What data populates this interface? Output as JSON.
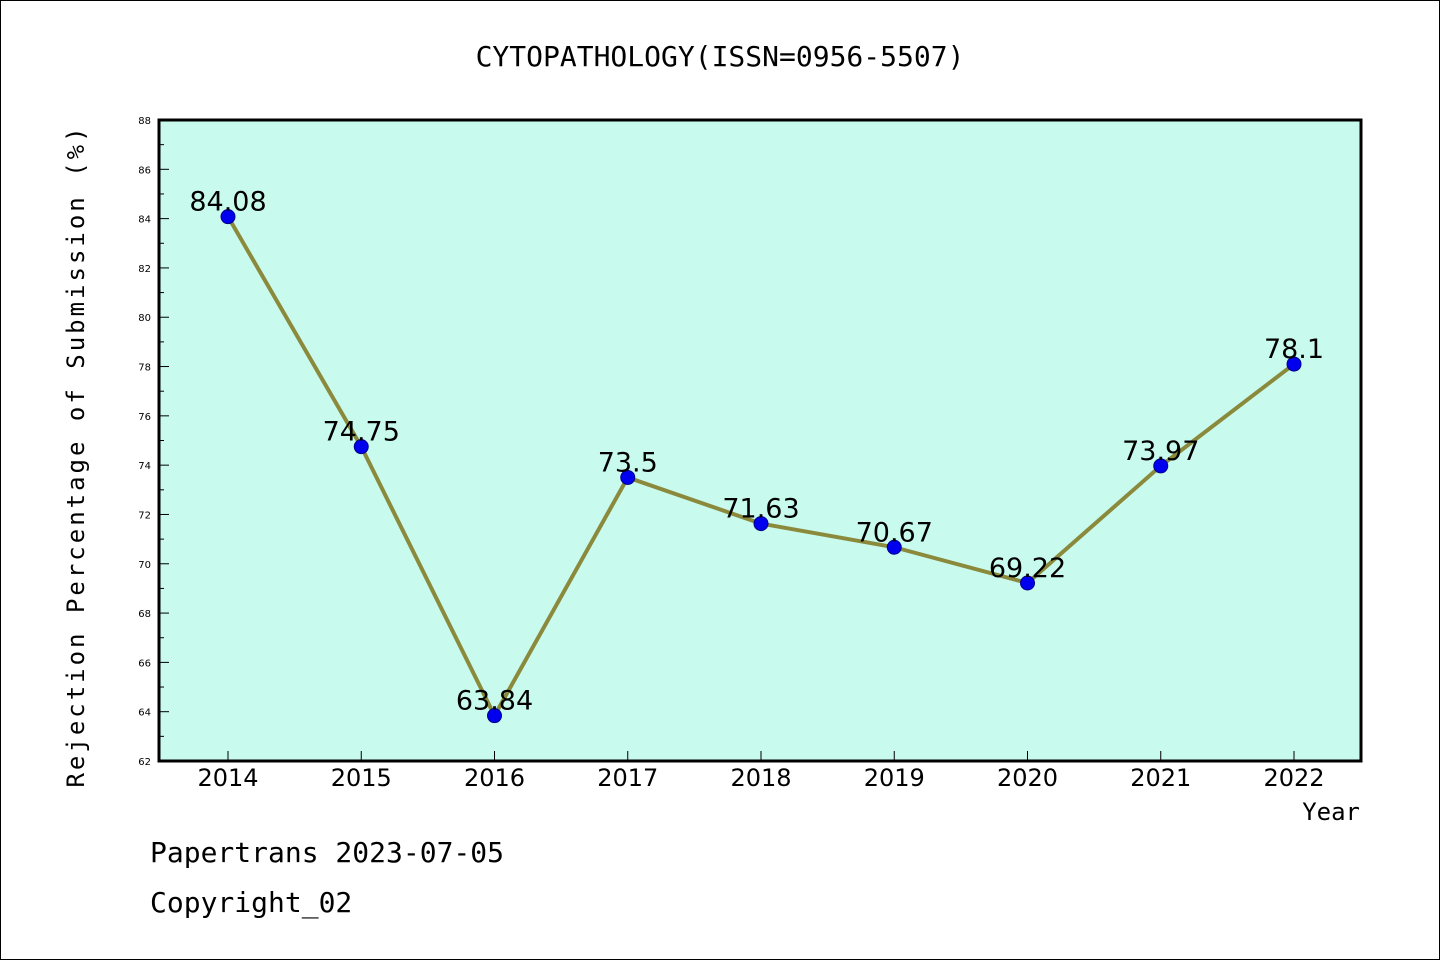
{
  "chart_data": {
    "type": "line",
    "title": "CYTOPATHOLOGY(ISSN=0956-5507)",
    "xlabel": "Year",
    "ylabel": "Rejection Percentage of Submission (%)",
    "categories": [
      "2014",
      "2015",
      "2016",
      "2017",
      "2018",
      "2019",
      "2020",
      "2021",
      "2022"
    ],
    "values": [
      84.08,
      74.75,
      63.84,
      73.5,
      71.63,
      70.67,
      69.22,
      73.97,
      78.1
    ],
    "data_labels": [
      "84.08",
      "74.75",
      "63.84",
      "73.5",
      "71.63",
      "70.67",
      "69.22",
      "73.97",
      "78.1"
    ],
    "ylim": [
      62,
      88
    ],
    "yticks": [
      62,
      64,
      66,
      68,
      70,
      72,
      74,
      76,
      78,
      80,
      82,
      84,
      86,
      88
    ],
    "grid": false,
    "colors": {
      "plot_background": "#c8fbee",
      "line": "#8b8a3c",
      "marker": "#0000ee"
    }
  },
  "footer": {
    "line1": "Papertrans 2023-07-05",
    "line2": "Copyright_02"
  }
}
